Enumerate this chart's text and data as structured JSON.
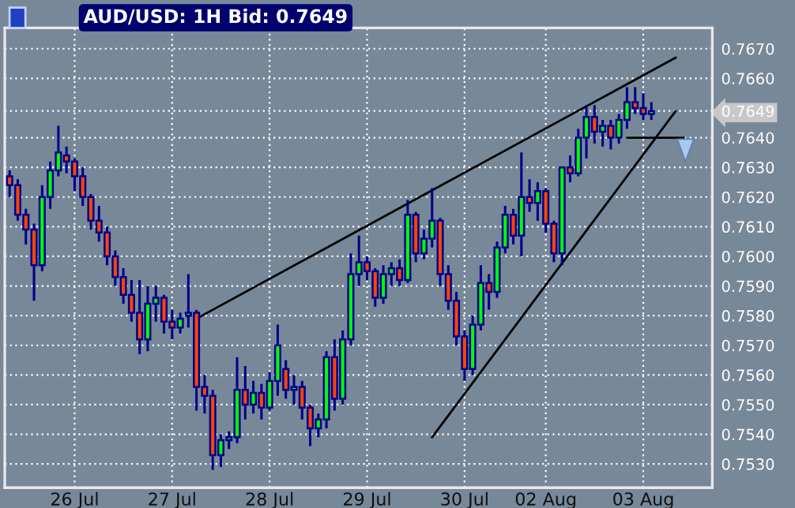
{
  "chart_data": {
    "type": "candlestick",
    "title": "AUD/USD: 1H Bid: 0.7649",
    "categories": [
      null,
      null,
      null,
      null,
      null,
      null,
      null,
      null,
      "26 Jul",
      null,
      null,
      null,
      null,
      null,
      null,
      null,
      null,
      null,
      null,
      null,
      "27 Jul",
      null,
      null,
      null,
      null,
      null,
      null,
      null,
      null,
      null,
      null,
      null,
      "28 Jul",
      null,
      null,
      null,
      null,
      null,
      null,
      null,
      null,
      null,
      null,
      null,
      "29 Jul",
      null,
      null,
      null,
      null,
      null,
      null,
      null,
      null,
      null,
      null,
      null,
      "30 Jul",
      null,
      null,
      null,
      null,
      null,
      null,
      null,
      null,
      null,
      "02 Aug",
      null,
      null,
      null,
      null,
      null,
      null,
      null,
      null,
      null,
      null,
      null,
      "03 Aug",
      null,
      null,
      null,
      null,
      null
    ],
    "ohlc": [
      [
        0.7627,
        0.7629,
        0.762,
        0.7624
      ],
      [
        0.7624,
        0.7626,
        0.7612,
        0.7614
      ],
      [
        0.7614,
        0.7616,
        0.7604,
        0.7609
      ],
      [
        0.7609,
        0.7611,
        0.7585,
        0.7597
      ],
      [
        0.7597,
        0.7624,
        0.7595,
        0.762
      ],
      [
        0.762,
        0.7632,
        0.7616,
        0.7629
      ],
      [
        0.7629,
        0.7644,
        0.7627,
        0.7635
      ],
      [
        0.7634,
        0.7637,
        0.7628,
        0.7632
      ],
      [
        0.7632,
        0.7633,
        0.7622,
        0.7627
      ],
      [
        0.7627,
        0.763,
        0.7617,
        0.762
      ],
      [
        0.762,
        0.7621,
        0.7609,
        0.7612
      ],
      [
        0.7612,
        0.7617,
        0.7605,
        0.7608
      ],
      [
        0.7608,
        0.761,
        0.7597,
        0.76
      ],
      [
        0.76,
        0.7602,
        0.759,
        0.7593
      ],
      [
        0.7593,
        0.7596,
        0.7584,
        0.7587
      ],
      [
        0.7587,
        0.7592,
        0.7578,
        0.7581
      ],
      [
        0.7581,
        0.7592,
        0.7567,
        0.7572
      ],
      [
        0.7572,
        0.759,
        0.7568,
        0.7584
      ],
      [
        0.7584,
        0.759,
        0.7578,
        0.7586
      ],
      [
        0.7586,
        0.7587,
        0.7574,
        0.7578
      ],
      [
        0.7578,
        0.7582,
        0.7572,
        0.7576
      ],
      [
        0.7576,
        0.7581,
        0.7574,
        0.7579
      ],
      [
        0.758,
        0.7594,
        0.7576,
        0.7581
      ],
      [
        0.7581,
        0.7582,
        0.7548,
        0.7556
      ],
      [
        0.7556,
        0.756,
        0.7547,
        0.7553
      ],
      [
        0.7553,
        0.7555,
        0.7528,
        0.7533
      ],
      [
        0.7533,
        0.754,
        0.7529,
        0.7538
      ],
      [
        0.7538,
        0.7541,
        0.7535,
        0.7539
      ],
      [
        0.7539,
        0.7566,
        0.7537,
        0.7555
      ],
      [
        0.7555,
        0.7563,
        0.7545,
        0.755
      ],
      [
        0.755,
        0.7558,
        0.7547,
        0.7554
      ],
      [
        0.7554,
        0.7557,
        0.7545,
        0.7549
      ],
      [
        0.7549,
        0.7561,
        0.7548,
        0.7558
      ],
      [
        0.7558,
        0.7577,
        0.7553,
        0.757
      ],
      [
        0.7562,
        0.7565,
        0.7552,
        0.7555
      ],
      [
        0.7555,
        0.756,
        0.755,
        0.7556
      ],
      [
        0.7556,
        0.7558,
        0.7545,
        0.7549
      ],
      [
        0.7549,
        0.755,
        0.7536,
        0.7542
      ],
      [
        0.7542,
        0.7547,
        0.7539,
        0.7545
      ],
      [
        0.7545,
        0.7568,
        0.7542,
        0.7566
      ],
      [
        0.7566,
        0.7572,
        0.7548,
        0.7552
      ],
      [
        0.7552,
        0.7575,
        0.755,
        0.7572
      ],
      [
        0.7572,
        0.7601,
        0.757,
        0.7594
      ],
      [
        0.7594,
        0.7607,
        0.759,
        0.7598
      ],
      [
        0.7598,
        0.76,
        0.7592,
        0.7595
      ],
      [
        0.7595,
        0.7596,
        0.7583,
        0.7586
      ],
      [
        0.7586,
        0.7597,
        0.7584,
        0.7594
      ],
      [
        0.7594,
        0.7598,
        0.759,
        0.7596
      ],
      [
        0.7596,
        0.7599,
        0.759,
        0.7592
      ],
      [
        0.7592,
        0.7619,
        0.7591,
        0.7614
      ],
      [
        0.7614,
        0.7615,
        0.7598,
        0.7601
      ],
      [
        0.7601,
        0.7609,
        0.7599,
        0.7606
      ],
      [
        0.7606,
        0.7623,
        0.7603,
        0.7612
      ],
      [
        0.7612,
        0.7613,
        0.759,
        0.7594
      ],
      [
        0.7594,
        0.7597,
        0.7582,
        0.7585
      ],
      [
        0.7585,
        0.7588,
        0.757,
        0.7573
      ],
      [
        0.7573,
        0.7575,
        0.7558,
        0.7562
      ],
      [
        0.7562,
        0.758,
        0.756,
        0.7577
      ],
      [
        0.7577,
        0.7597,
        0.7575,
        0.7591
      ],
      [
        0.7591,
        0.7594,
        0.7582,
        0.7588
      ],
      [
        0.7588,
        0.7605,
        0.7586,
        0.7603
      ],
      [
        0.7603,
        0.7617,
        0.7601,
        0.7614
      ],
      [
        0.7614,
        0.7616,
        0.7604,
        0.7607
      ],
      [
        0.7607,
        0.7635,
        0.76,
        0.762
      ],
      [
        0.762,
        0.7626,
        0.7615,
        0.7618
      ],
      [
        0.7618,
        0.7625,
        0.7612,
        0.7622
      ],
      [
        0.7622,
        0.7623,
        0.7608,
        0.7611
      ],
      [
        0.7611,
        0.7612,
        0.7598,
        0.7601
      ],
      [
        0.7601,
        0.763,
        0.7597,
        0.763
      ],
      [
        0.763,
        0.7634,
        0.7625,
        0.7628
      ],
      [
        0.7628,
        0.7643,
        0.7627,
        0.764
      ],
      [
        0.764,
        0.7651,
        0.7633,
        0.7647
      ],
      [
        0.7647,
        0.7651,
        0.7638,
        0.7642
      ],
      [
        0.7642,
        0.7646,
        0.7637,
        0.7644
      ],
      [
        0.7644,
        0.7646,
        0.7636,
        0.764
      ],
      [
        0.764,
        0.7648,
        0.7638,
        0.7646
      ],
      [
        0.7646,
        0.7657,
        0.7643,
        0.7652
      ],
      [
        0.7652,
        0.7657,
        0.7648,
        0.765
      ],
      [
        0.765,
        0.7655,
        0.7646,
        0.7648
      ],
      [
        0.7648,
        0.7652,
        0.7646,
        0.7649
      ],
      null,
      null,
      null,
      null
    ],
    "series": [
      {
        "type": "line",
        "color": "#000000",
        "values": [
          null,
          null,
          null,
          null,
          null,
          null,
          null,
          null,
          null,
          null,
          null,
          null,
          null,
          null,
          null,
          null,
          null,
          null,
          null,
          null,
          null,
          null,
          null,
          0.7579,
          null,
          null,
          null,
          null,
          null,
          null,
          null,
          null,
          null,
          null,
          null,
          null,
          null,
          null,
          null,
          null,
          null,
          null,
          null,
          null,
          null,
          null,
          null,
          null,
          null,
          null,
          null,
          null,
          null,
          null,
          null,
          null,
          null,
          null,
          null,
          null,
          null,
          null,
          null,
          null,
          null,
          null,
          null,
          null,
          null,
          null,
          null,
          null,
          null,
          null,
          null,
          null,
          null,
          null,
          null,
          null,
          null,
          null,
          0.7667,
          null
        ]
      },
      {
        "type": "line",
        "color": "#000000",
        "values": [
          null,
          null,
          null,
          null,
          null,
          null,
          null,
          null,
          null,
          null,
          null,
          null,
          null,
          null,
          null,
          null,
          null,
          null,
          null,
          null,
          null,
          null,
          null,
          null,
          null,
          null,
          null,
          null,
          null,
          null,
          null,
          null,
          null,
          null,
          null,
          null,
          null,
          null,
          null,
          null,
          null,
          null,
          null,
          null,
          null,
          null,
          null,
          null,
          null,
          null,
          null,
          null,
          0.7539,
          null,
          null,
          null,
          null,
          null,
          null,
          null,
          null,
          null,
          null,
          null,
          null,
          null,
          null,
          null,
          null,
          null,
          null,
          null,
          null,
          null,
          null,
          null,
          null,
          null,
          null,
          null,
          null,
          null,
          0.7649,
          null
        ]
      },
      {
        "type": "line",
        "color": "#000000",
        "values": [
          null,
          null,
          null,
          null,
          null,
          null,
          null,
          null,
          null,
          null,
          null,
          null,
          null,
          null,
          null,
          null,
          null,
          null,
          null,
          null,
          null,
          null,
          null,
          null,
          null,
          null,
          null,
          null,
          null,
          null,
          null,
          null,
          null,
          null,
          null,
          null,
          null,
          null,
          null,
          null,
          null,
          null,
          null,
          null,
          null,
          null,
          null,
          null,
          null,
          null,
          null,
          null,
          null,
          null,
          null,
          null,
          null,
          null,
          null,
          null,
          null,
          null,
          null,
          null,
          null,
          null,
          null,
          null,
          null,
          null,
          null,
          null,
          null,
          null,
          null,
          null,
          0.764,
          null,
          null,
          null,
          null,
          null,
          null,
          0.764
        ]
      }
    ],
    "ylim": [
      0.7522,
      0.7677
    ],
    "yticks": [
      {
        "value": 0.753,
        "label": "0.7530"
      },
      {
        "value": 0.754,
        "label": "0.7540"
      },
      {
        "value": 0.755,
        "label": "0.7550"
      },
      {
        "value": 0.756,
        "label": "0.7560"
      },
      {
        "value": 0.757,
        "label": "0.7570"
      },
      {
        "value": 0.758,
        "label": "0.7580"
      },
      {
        "value": 0.759,
        "label": "0.7590"
      },
      {
        "value": 0.76,
        "label": "0.7600"
      },
      {
        "value": 0.761,
        "label": "0.7610"
      },
      {
        "value": 0.762,
        "label": "0.7620"
      },
      {
        "value": 0.763,
        "label": "0.7630"
      },
      {
        "value": 0.764,
        "label": "0.7640"
      },
      {
        "value": 0.7649,
        "label": "0.7649"
      },
      {
        "value": 0.766,
        "label": "0.7660"
      },
      {
        "value": 0.767,
        "label": "0.7670"
      }
    ],
    "grid": true
  }
}
